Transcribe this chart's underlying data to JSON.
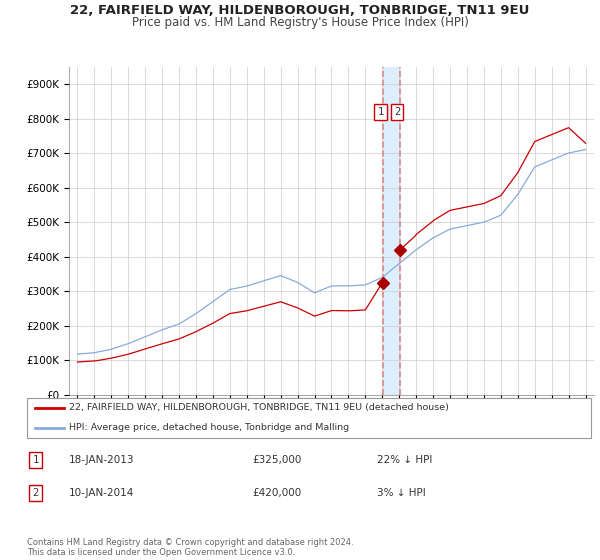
{
  "title": "22, FAIRFIELD WAY, HILDENBOROUGH, TONBRIDGE, TN11 9EU",
  "subtitle": "Price paid vs. HM Land Registry's House Price Index (HPI)",
  "title_fontsize": 9.5,
  "subtitle_fontsize": 8.5,
  "background_color": "#ffffff",
  "grid_color": "#cccccc",
  "sale1_date_num": 2013.05,
  "sale2_date_num": 2014.03,
  "sale1_price": 325000,
  "sale2_price": 420000,
  "sale1_label": "18-JAN-2013",
  "sale2_label": "10-JAN-2014",
  "sale1_hpi_diff": "22% ↓ HPI",
  "sale2_hpi_diff": "3% ↓ HPI",
  "legend_label_red": "22, FAIRFIELD WAY, HILDENBOROUGH, TONBRIDGE, TN11 9EU (detached house)",
  "legend_label_blue": "HPI: Average price, detached house, Tonbridge and Malling",
  "footer": "Contains HM Land Registry data © Crown copyright and database right 2024.\nThis data is licensed under the Open Government Licence v3.0.",
  "ylim": [
    0,
    950000
  ],
  "yticks": [
    0,
    100000,
    200000,
    300000,
    400000,
    500000,
    600000,
    700000,
    800000,
    900000
  ],
  "red_line_color": "#cc0000",
  "blue_line_color": "#88aadd",
  "marker_color": "#aa0000",
  "vline_color": "#dd8888",
  "shade_color": "#ddeeff"
}
